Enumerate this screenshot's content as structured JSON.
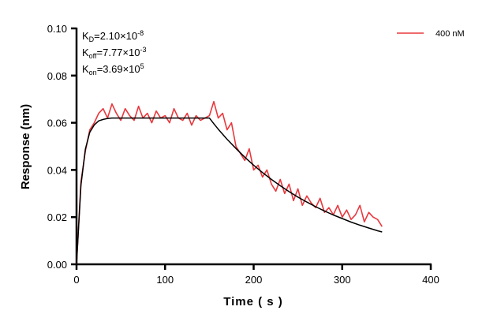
{
  "chart_data": {
    "type": "line",
    "xlabel": "Time ( s )",
    "ylabel": "Response (nm)",
    "xlim": [
      0,
      400
    ],
    "ylim": [
      0,
      0.1
    ],
    "xticks": [
      "0",
      "100",
      "200",
      "300",
      "400"
    ],
    "yticks": [
      "0.00",
      "0.02",
      "0.04",
      "0.06",
      "0.08",
      "0.10"
    ],
    "grid": false,
    "legend_position": "top-right",
    "annotations": {
      "kd": {
        "base": "K",
        "sub": "D",
        "text": "=2.10×10",
        "sup": "-8"
      },
      "koff": {
        "base": "K",
        "sub": "off",
        "text": "=7.77×10",
        "sup": "-3"
      },
      "kon": {
        "base": "K",
        "sub": "on",
        "text": "=3.69×10",
        "sup": "5"
      }
    },
    "series": [
      {
        "name": "400 nM",
        "color": "#e8383d",
        "x": [
          0,
          5,
          10,
          15,
          20,
          25,
          30,
          35,
          40,
          45,
          50,
          55,
          60,
          65,
          70,
          75,
          80,
          85,
          90,
          95,
          100,
          105,
          110,
          115,
          120,
          125,
          130,
          135,
          140,
          145,
          150,
          155,
          160,
          165,
          170,
          175,
          180,
          185,
          190,
          195,
          200,
          205,
          210,
          215,
          220,
          225,
          230,
          235,
          240,
          245,
          250,
          255,
          260,
          265,
          270,
          275,
          280,
          285,
          290,
          295,
          300,
          305,
          310,
          315,
          320,
          325,
          330,
          335,
          340,
          345
        ],
        "y": [
          0.0,
          0.035,
          0.048,
          0.057,
          0.06,
          0.064,
          0.066,
          0.062,
          0.068,
          0.064,
          0.061,
          0.066,
          0.063,
          0.061,
          0.067,
          0.062,
          0.064,
          0.06,
          0.065,
          0.062,
          0.063,
          0.06,
          0.066,
          0.062,
          0.061,
          0.064,
          0.059,
          0.063,
          0.061,
          0.062,
          0.063,
          0.069,
          0.062,
          0.064,
          0.057,
          0.06,
          0.05,
          0.047,
          0.044,
          0.049,
          0.04,
          0.042,
          0.037,
          0.04,
          0.034,
          0.031,
          0.036,
          0.03,
          0.034,
          0.027,
          0.032,
          0.025,
          0.029,
          0.026,
          0.024,
          0.028,
          0.022,
          0.024,
          0.021,
          0.025,
          0.02,
          0.023,
          0.019,
          0.021,
          0.025,
          0.018,
          0.022,
          0.02,
          0.019,
          0.016
        ]
      },
      {
        "role": "fit",
        "color": "#000000",
        "x": [
          0,
          5,
          10,
          15,
          20,
          25,
          30,
          35,
          40,
          150,
          155,
          160,
          170,
          180,
          190,
          200,
          210,
          220,
          230,
          240,
          250,
          260,
          270,
          280,
          290,
          300,
          310,
          320,
          330,
          340,
          345
        ],
        "y": [
          0,
          0.0335,
          0.0488,
          0.056,
          0.0591,
          0.0608,
          0.0614,
          0.0618,
          0.062,
          0.062,
          0.0596,
          0.0573,
          0.053,
          0.0491,
          0.0454,
          0.042,
          0.0389,
          0.036,
          0.0333,
          0.0308,
          0.0285,
          0.0264,
          0.0244,
          0.0226,
          0.0209,
          0.0194,
          0.0179,
          0.0166,
          0.0154,
          0.0142,
          0.0137
        ]
      }
    ]
  }
}
